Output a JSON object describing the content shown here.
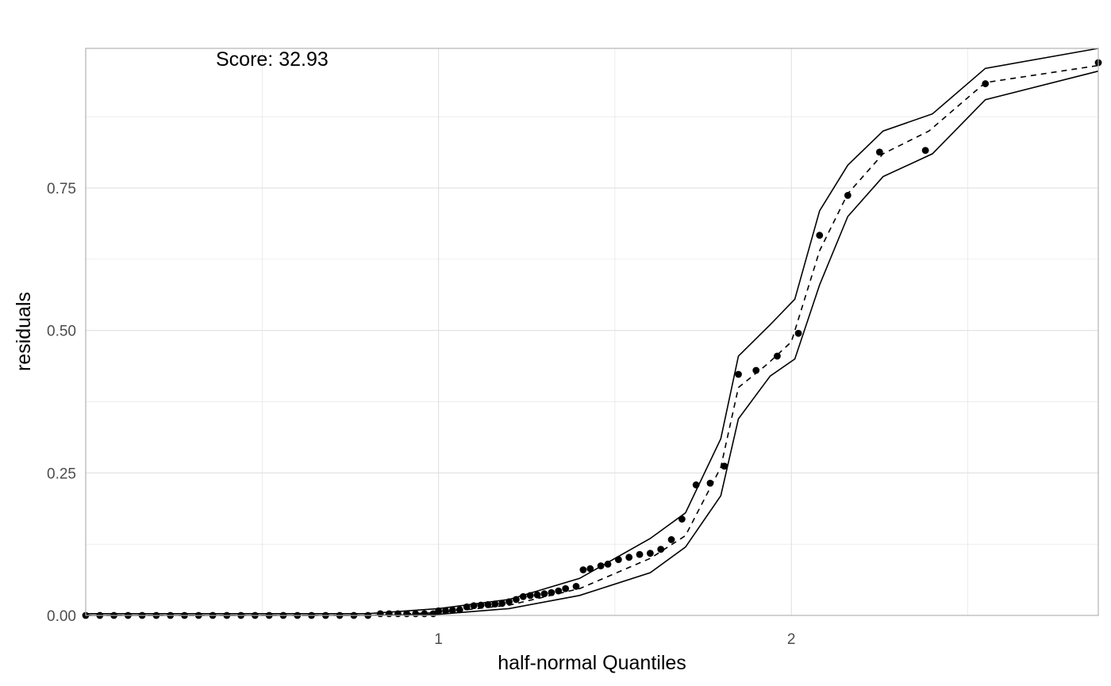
{
  "chart_data": {
    "type": "scatter",
    "title": "",
    "annotation": "Score: 32.93",
    "xlabel": "half-normal Quantiles",
    "ylabel": "residuals",
    "xlim": [
      0.0,
      2.87
    ],
    "ylim": [
      0.0,
      0.995
    ],
    "x_ticks": [
      1,
      2
    ],
    "x_tick_labels": [
      "1",
      "2"
    ],
    "y_ticks": [
      0,
      0.25,
      0.5,
      0.75
    ],
    "y_tick_labels": [
      "0.00",
      "0.25",
      "0.50",
      "0.75"
    ],
    "grid": true,
    "legend": "none",
    "colors": {
      "points": "#000000",
      "grid": "#e0e0e0",
      "frame": "#b3b3b3",
      "tick_text": "#4d4d4d"
    },
    "series": [
      {
        "type": "points",
        "points": [
          [
            0.0,
            0.0
          ],
          [
            0.04,
            0.0
          ],
          [
            0.08,
            0.0
          ],
          [
            0.12,
            0.0
          ],
          [
            0.16,
            0.0
          ],
          [
            0.2,
            0.0
          ],
          [
            0.24,
            0.0
          ],
          [
            0.28,
            0.0
          ],
          [
            0.32,
            0.0
          ],
          [
            0.36,
            0.0
          ],
          [
            0.4,
            0.0
          ],
          [
            0.44,
            0.0
          ],
          [
            0.48,
            0.0
          ],
          [
            0.52,
            0.0
          ],
          [
            0.56,
            0.0
          ],
          [
            0.6,
            0.0
          ],
          [
            0.64,
            0.0
          ],
          [
            0.68,
            0.0
          ],
          [
            0.72,
            0.0
          ],
          [
            0.76,
            0.0
          ],
          [
            0.8,
            0.0
          ],
          [
            0.835,
            0.003
          ],
          [
            0.86,
            0.003
          ],
          [
            0.885,
            0.003
          ],
          [
            0.91,
            0.003
          ],
          [
            0.935,
            0.003
          ],
          [
            0.96,
            0.003
          ],
          [
            0.985,
            0.003
          ],
          [
            1.0,
            0.008
          ],
          [
            1.02,
            0.008
          ],
          [
            1.04,
            0.009
          ],
          [
            1.06,
            0.01
          ],
          [
            1.08,
            0.015
          ],
          [
            1.1,
            0.017
          ],
          [
            1.12,
            0.018
          ],
          [
            1.14,
            0.019
          ],
          [
            1.16,
            0.02
          ],
          [
            1.18,
            0.021
          ],
          [
            1.2,
            0.024
          ],
          [
            1.22,
            0.028
          ],
          [
            1.24,
            0.033
          ],
          [
            1.26,
            0.035
          ],
          [
            1.28,
            0.036
          ],
          [
            1.3,
            0.038
          ],
          [
            1.32,
            0.04
          ],
          [
            1.34,
            0.043
          ],
          [
            1.36,
            0.047
          ],
          [
            1.39,
            0.051
          ],
          [
            1.41,
            0.08
          ],
          [
            1.43,
            0.082
          ],
          [
            1.46,
            0.087
          ],
          [
            1.48,
            0.09
          ],
          [
            1.51,
            0.098
          ],
          [
            1.54,
            0.102
          ],
          [
            1.57,
            0.107
          ],
          [
            1.6,
            0.109
          ],
          [
            1.63,
            0.116
          ],
          [
            1.66,
            0.133
          ],
          [
            1.69,
            0.169
          ],
          [
            1.73,
            0.229
          ],
          [
            1.77,
            0.232
          ],
          [
            1.81,
            0.262
          ],
          [
            1.85,
            0.423
          ],
          [
            1.9,
            0.43
          ],
          [
            1.96,
            0.455
          ],
          [
            2.02,
            0.495
          ],
          [
            2.08,
            0.667
          ],
          [
            2.16,
            0.737
          ],
          [
            2.25,
            0.813
          ],
          [
            2.38,
            0.816
          ],
          [
            2.55,
            0.933
          ],
          [
            2.87,
            0.97
          ]
        ]
      }
    ],
    "median_line": [
      [
        0.0,
        0.0
      ],
      [
        0.8,
        0.0
      ],
      [
        1.0,
        0.005
      ],
      [
        1.2,
        0.018
      ],
      [
        1.4,
        0.047
      ],
      [
        1.6,
        0.1
      ],
      [
        1.7,
        0.14
      ],
      [
        1.8,
        0.26
      ],
      [
        1.85,
        0.4
      ],
      [
        1.93,
        0.44
      ],
      [
        2.0,
        0.48
      ],
      [
        2.08,
        0.64
      ],
      [
        2.16,
        0.74
      ],
      [
        2.26,
        0.81
      ],
      [
        2.39,
        0.85
      ],
      [
        2.55,
        0.935
      ],
      [
        2.87,
        0.965
      ]
    ],
    "upper_band": [
      [
        0.0,
        0.003
      ],
      [
        0.8,
        0.003
      ],
      [
        1.0,
        0.012
      ],
      [
        1.2,
        0.028
      ],
      [
        1.4,
        0.065
      ],
      [
        1.6,
        0.135
      ],
      [
        1.7,
        0.18
      ],
      [
        1.8,
        0.31
      ],
      [
        1.85,
        0.455
      ],
      [
        1.94,
        0.51
      ],
      [
        2.01,
        0.555
      ],
      [
        2.08,
        0.71
      ],
      [
        2.16,
        0.79
      ],
      [
        2.26,
        0.85
      ],
      [
        2.4,
        0.88
      ],
      [
        2.55,
        0.96
      ],
      [
        2.87,
        0.995
      ]
    ],
    "lower_band": [
      [
        0.0,
        0.0
      ],
      [
        0.8,
        0.0
      ],
      [
        1.0,
        0.002
      ],
      [
        1.2,
        0.012
      ],
      [
        1.4,
        0.035
      ],
      [
        1.6,
        0.075
      ],
      [
        1.7,
        0.12
      ],
      [
        1.8,
        0.21
      ],
      [
        1.85,
        0.345
      ],
      [
        1.94,
        0.42
      ],
      [
        2.01,
        0.45
      ],
      [
        2.08,
        0.58
      ],
      [
        2.16,
        0.7
      ],
      [
        2.26,
        0.77
      ],
      [
        2.4,
        0.81
      ],
      [
        2.55,
        0.905
      ],
      [
        2.87,
        0.955
      ]
    ]
  }
}
